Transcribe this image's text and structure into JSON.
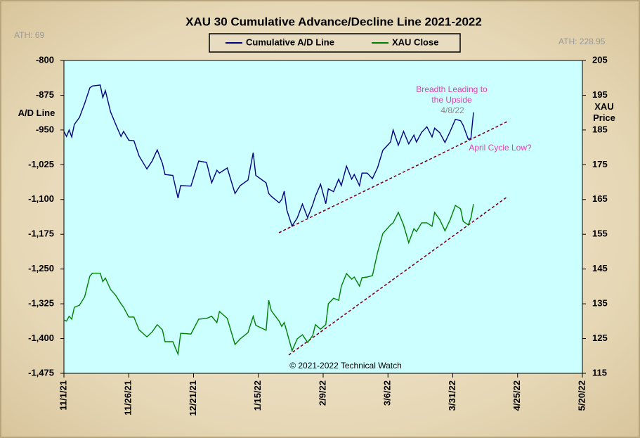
{
  "chart_data": {
    "type": "line",
    "title": "XAU 30 Cumulative  Advance/Decline  Line  2021-2022",
    "y_label": "A/D Line",
    "y2_label": "XAU Price",
    "annotations": [
      "ATH: 69",
      "ATH: 228.95",
      "Breadth Leading to the Upside",
      "4/8/22",
      "April Cycle Low?",
      "© 2021-2022  Technical  Watch"
    ],
    "legend": "top",
    "x": [
      "11/1/21",
      "11/2/21",
      "11/3/21",
      "11/4/21",
      "11/5/21",
      "11/7/21",
      "11/9/21",
      "11/11/21",
      "11/12/21",
      "11/15/21",
      "11/16/21",
      "11/17/21",
      "11/19/21",
      "11/21/21",
      "11/23/21",
      "11/24/21",
      "11/26/21",
      "11/28/21",
      "11/30/21",
      "12/3/21",
      "12/5/21",
      "12/7/21",
      "12/9/21",
      "12/10/21",
      "12/13/21",
      "12/15/21",
      "12/16/21",
      "12/20/21",
      "12/23/21",
      "12/26/21",
      "12/28/21",
      "12/30/21",
      "12/31/21",
      "1/3/22",
      "1/6/22",
      "1/8/22",
      "1/11/22",
      "1/13/22",
      "1/14/22",
      "1/18/22",
      "1/19/22",
      "1/20/22",
      "1/23/22",
      "1/24/22",
      "1/25/22",
      "1/26/22",
      "1/28/22",
      "1/30/22",
      "2/1/22",
      "2/3/22",
      "2/5/22",
      "2/6/22",
      "2/8/22",
      "2/10/22",
      "2/11/22",
      "2/13/22",
      "2/15/22",
      "2/16/22",
      "2/18/22",
      "2/20/22",
      "2/21/22",
      "2/23/22",
      "2/24/22",
      "2/26/22",
      "2/28/22",
      "3/2/22",
      "3/4/22",
      "3/7/22",
      "3/8/22",
      "3/10/22",
      "3/12/22",
      "3/14/22",
      "3/16/22",
      "3/17/22",
      "3/19/22",
      "3/21/22",
      "3/23/22",
      "3/24/22",
      "3/26/22",
      "3/28/22",
      "3/30/22",
      "4/1/22",
      "4/3/22",
      "4/4/22",
      "4/6/22",
      "4/7/22",
      "4/8/22"
    ],
    "xlim": [
      "11/1/21",
      "5/20/22"
    ],
    "xticks": [
      "11/1/21",
      "11/26/21",
      "12/21/21",
      "1/15/22",
      "2/9/22",
      "3/6/22",
      "3/31/22",
      "4/25/22",
      "5/20/22"
    ],
    "ylim": [
      -1475,
      -800
    ],
    "yticks": [
      -800,
      -875,
      -950,
      {
        "value": -1025,
        "label": "-1,025"
      },
      {
        "value": -1100,
        "label": "-1,100"
      },
      {
        "value": -1175,
        "label": "-1,175"
      },
      {
        "value": -1250,
        "label": "-1,250"
      },
      {
        "value": -1325,
        "label": "-1,325"
      },
      {
        "value": -1400,
        "label": "-1,400"
      },
      {
        "value": -1475,
        "label": "-1,475"
      }
    ],
    "y2lim": [
      115,
      205
    ],
    "y2ticks": [
      115,
      125,
      135,
      145,
      155,
      165,
      175,
      185,
      195,
      205
    ],
    "series": [
      {
        "name": "Cumulative A/D Line",
        "color": "#000080",
        "values": [
          -953,
          -964,
          -950,
          -965,
          -938,
          -923,
          -893,
          -859,
          -855,
          -853,
          -880,
          -865,
          -911,
          -938,
          -964,
          -953,
          -972,
          -973,
          -1006,
          -1034,
          -1017,
          -993,
          -1022,
          -1046,
          -1048,
          -1097,
          -1070,
          -1071,
          -1017,
          -1020,
          -1064,
          -1037,
          -1043,
          -1032,
          -1087,
          -1070,
          -1058,
          -999,
          -1048,
          -1064,
          -1087,
          -1093,
          -1107,
          -1100,
          -1082,
          -1123,
          -1157,
          -1140,
          -1110,
          -1139,
          -1111,
          -1093,
          -1067,
          -1109,
          -1077,
          -1083,
          -1056,
          -1070,
          -1028,
          -1056,
          -1046,
          -1070,
          -1043,
          -1043,
          -1055,
          -1031,
          -994,
          -976,
          -950,
          -983,
          -953,
          -980,
          -961,
          -976,
          -955,
          -943,
          -965,
          -946,
          -956,
          -977,
          -953,
          -927,
          -930,
          -940,
          -970,
          -968,
          -912
        ]
      },
      {
        "name": "XAU Close",
        "color": "#008000",
        "axis": "y2",
        "values": [
          130.4,
          130.0,
          131.4,
          130.6,
          134.0,
          134.6,
          137.0,
          143.0,
          143.8,
          143.8,
          141.4,
          142.4,
          139.1,
          137.4,
          135.0,
          134.0,
          131.2,
          131.2,
          127.5,
          125.5,
          126.9,
          129.0,
          127.5,
          124.1,
          124.1,
          120.5,
          126.5,
          126.3,
          130.6,
          130.8,
          131.4,
          129.6,
          132.8,
          130.8,
          123.3,
          124.9,
          126.7,
          131.4,
          128.8,
          127.4,
          136.0,
          133.0,
          130.0,
          128.5,
          129.6,
          127.0,
          121.5,
          124.9,
          126.1,
          123.9,
          125.9,
          129.0,
          127.7,
          129.0,
          135.0,
          136.6,
          136.0,
          140.0,
          143.7,
          142.1,
          142.7,
          140.1,
          142.5,
          142.7,
          143.1,
          149.8,
          155.2,
          157.7,
          158.3,
          161.3,
          157.7,
          152.6,
          156.6,
          155.8,
          158.3,
          158.3,
          157.3,
          161.3,
          159.2,
          156.0,
          159.2,
          163.3,
          162.3,
          158.7,
          157.7,
          159.7,
          163.7
        ]
      }
    ]
  }
}
